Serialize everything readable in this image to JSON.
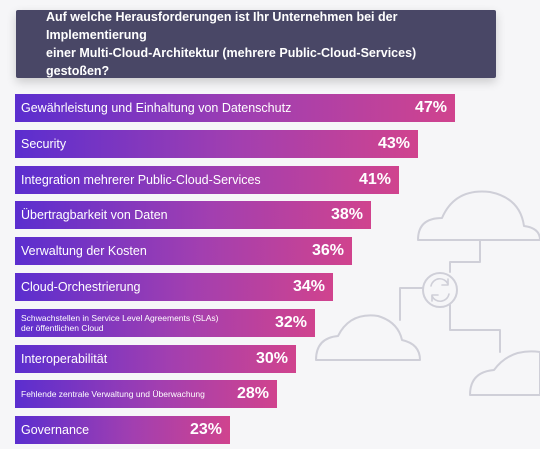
{
  "chart_data": {
    "type": "bar",
    "orientation": "horizontal",
    "title": "Auf welche Herausforderungen ist Ihr Unternehmen bei der Implementierung\neiner Multi-Cloud-Architektur (mehrere Public-Cloud-Services) gestoßen?",
    "categories": [
      "Gewährleistung und Einhaltung von Datenschutz",
      "Security",
      "Integration mehrerer Public-Cloud-Services",
      "Übertragbarkeit von Daten",
      "Verwaltung der Kosten",
      "Cloud-Orchestrierung",
      "Schwachstellen in Service Level Agreements (SLAs)\nder öffentlichen Cloud",
      "Interoperabilität",
      "Fehlende zentrale Verwaltung und Überwachung",
      "Governance"
    ],
    "values": [
      47,
      43,
      41,
      38,
      36,
      34,
      32,
      30,
      28,
      23
    ],
    "value_labels": [
      "47%",
      "43%",
      "41%",
      "38%",
      "36%",
      "34%",
      "32%",
      "30%",
      "28%",
      "23%"
    ],
    "small_label_indices": [
      6,
      8
    ],
    "xlim": [
      0,
      100
    ],
    "colors": {
      "bar_start": "#5b2ecf",
      "bar_mid": "#a23fb0",
      "bar_end": "#d0438e",
      "header": "#494766",
      "cloud_stroke": "#cfcfd8"
    }
  },
  "icons": [
    "cloud-icon",
    "cloud-icon",
    "cloud-icon",
    "sync-icon"
  ]
}
